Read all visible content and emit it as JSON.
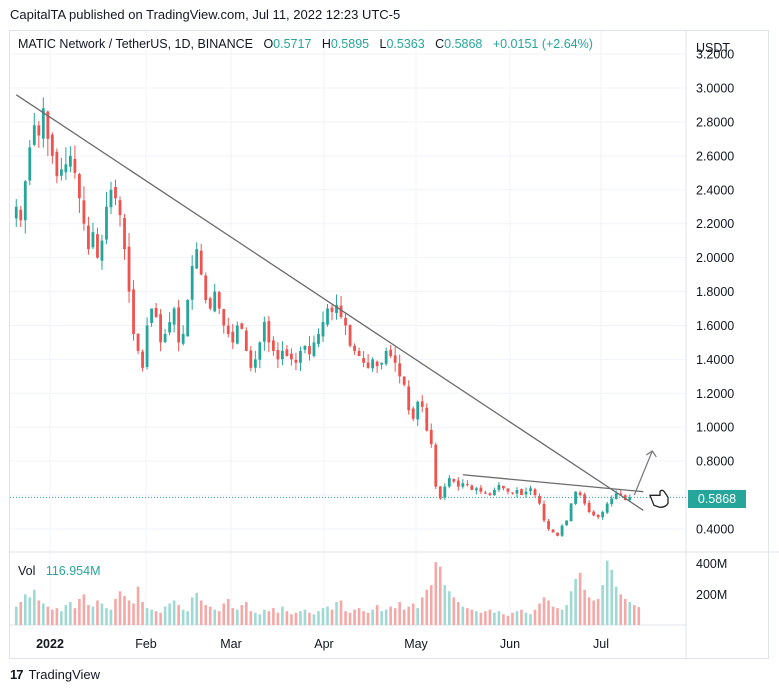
{
  "header": {
    "published": "CapitalTA published on TradingView.com, Jul 11, 2022 12:23 UTC-5"
  },
  "ohlc": {
    "symbol": "MATIC Network / TetherUS, 1D, BINANCE",
    "o_label": "O",
    "o_value": "0.5717",
    "h_label": "H",
    "h_value": "0.5895",
    "l_label": "L",
    "l_value": "0.5363",
    "c_label": "C",
    "c_value": "0.5868",
    "change": "+0.0151 (+2.64%)"
  },
  "volume": {
    "label": "Vol",
    "value": "116.954M",
    "axis_ticks": [
      "400M",
      "200M"
    ]
  },
  "price_axis": {
    "unit": "USDT",
    "current_price": "0.5868"
  },
  "footer": {
    "brand": "TradingView"
  },
  "colors": {
    "up": "#26a69a",
    "down": "#ef5350",
    "trendline": "#6b6b6b",
    "grid": "#f0f3fa"
  },
  "chart_data": {
    "type": "candlestick",
    "symbol": "MATICUSDT",
    "y_ticks": [
      "3.2000",
      "3.0000",
      "2.8000",
      "2.6000",
      "2.4000",
      "2.2000",
      "2.0000",
      "1.8000",
      "1.6000",
      "1.4000",
      "1.2000",
      "1.0000",
      "0.8000",
      "0.6000",
      "0.4000"
    ],
    "y_tick_values": [
      3.2,
      3.0,
      2.8,
      2.6,
      2.4,
      2.2,
      2.0,
      1.8,
      1.6,
      1.4,
      1.2,
      1.0,
      0.8,
      0.6,
      0.4
    ],
    "ylim": [
      0.28,
      3.22
    ],
    "x_ticks": [
      "2022",
      "Feb",
      "Mar",
      "Apr",
      "May",
      "Jun",
      "Jul"
    ],
    "grid": true,
    "closes": [
      2.3,
      2.22,
      2.45,
      2.65,
      2.78,
      2.72,
      2.88,
      2.7,
      2.6,
      2.48,
      2.52,
      2.55,
      2.6,
      2.5,
      2.35,
      2.2,
      2.05,
      2.15,
      2.0,
      2.1,
      2.3,
      2.4,
      2.35,
      2.25,
      2.05,
      1.8,
      1.55,
      1.45,
      1.35,
      1.6,
      1.7,
      1.65,
      1.5,
      1.55,
      1.62,
      1.7,
      1.5,
      1.55,
      1.75,
      1.95,
      2.05,
      1.9,
      1.75,
      1.7,
      1.8,
      1.7,
      1.6,
      1.55,
      1.5,
      1.6,
      1.58,
      1.45,
      1.35,
      1.4,
      1.5,
      1.62,
      1.5,
      1.45,
      1.4,
      1.45,
      1.42,
      1.4,
      1.38,
      1.45,
      1.48,
      1.43,
      1.5,
      1.55,
      1.62,
      1.7,
      1.68,
      1.72,
      1.65,
      1.6,
      1.48,
      1.45,
      1.42,
      1.38,
      1.35,
      1.4,
      1.36,
      1.38,
      1.45,
      1.42,
      1.38,
      1.3,
      1.25,
      1.1,
      1.05,
      1.15,
      1.12,
      0.98,
      0.9,
      0.65,
      0.58,
      0.65,
      0.7,
      0.68,
      0.65,
      0.67,
      0.66,
      0.63,
      0.64,
      0.62,
      0.61,
      0.6,
      0.63,
      0.66,
      0.64,
      0.62,
      0.61,
      0.63,
      0.6,
      0.62,
      0.64,
      0.6,
      0.55,
      0.45,
      0.4,
      0.38,
      0.36,
      0.42,
      0.45,
      0.55,
      0.62,
      0.6,
      0.55,
      0.5,
      0.48,
      0.47,
      0.5,
      0.55,
      0.58,
      0.61,
      0.6,
      0.57,
      0.5868
    ],
    "trendlines": [
      {
        "from": [
          0,
          2.96
        ],
        "to": [
          139,
          0.51
        ]
      },
      {
        "from": [
          99,
          0.72
        ],
        "to": [
          139,
          0.62
        ]
      }
    ],
    "projection_arrow": {
      "from": [
        137,
        0.6
      ],
      "to": [
        141,
        0.86
      ]
    },
    "current_price": 0.5868,
    "volume": [
      120,
      150,
      200,
      180,
      230,
      160,
      140,
      120,
      100,
      110,
      90,
      130,
      150,
      110,
      170,
      200,
      130,
      120,
      160,
      140,
      110,
      100,
      170,
      220,
      190,
      160,
      140,
      250,
      150,
      110,
      100,
      90,
      80,
      120,
      140,
      160,
      130,
      100,
      90,
      180,
      210,
      160,
      130,
      120,
      100,
      90,
      140,
      170,
      110,
      100,
      130,
      150,
      90,
      80,
      70,
      100,
      90,
      110,
      80,
      120,
      90,
      70,
      80,
      90,
      100,
      80,
      70,
      90,
      110,
      120,
      100,
      150,
      160,
      90,
      80,
      100,
      110,
      90,
      80,
      100,
      130,
      90,
      100,
      120,
      110,
      150,
      100,
      120,
      140,
      110,
      180,
      230,
      260,
      410,
      380,
      260,
      220,
      180,
      150,
      120,
      110,
      100,
      90,
      80,
      90,
      100,
      80,
      90,
      70,
      60,
      80,
      90,
      100,
      80,
      70,
      100,
      140,
      180,
      160,
      120,
      110,
      100,
      130,
      220,
      300,
      340,
      230,
      180,
      160,
      170,
      260,
      420,
      360,
      250,
      200,
      170,
      150,
      130,
      117
    ]
  }
}
